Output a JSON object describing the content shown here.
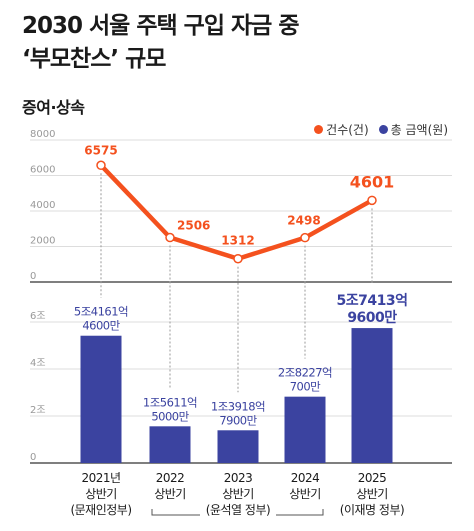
{
  "title_line1": "2030 서울 주택 구입 자금 중",
  "title_line2": "‘부모찬스’ 규모",
  "subtitle": "증여·상속",
  "legend": [
    {
      "label": "건수(건)",
      "color": "#f4511e"
    },
    {
      "label": "총 금액(원)",
      "color": "#3b43a0"
    }
  ],
  "chart_data": {
    "type": "bar",
    "categories": [
      [
        "2021년",
        "상반기",
        "(문재인정부)"
      ],
      [
        "2022",
        "상반기",
        ""
      ],
      [
        "2023",
        "상반기",
        "(윤석열 정부)"
      ],
      [
        "2024",
        "상반기",
        ""
      ],
      [
        "2025",
        "상반기",
        "(이재명 정부)"
      ]
    ],
    "series": [
      {
        "name": "건수(건)",
        "type": "line",
        "values": [
          6575,
          2506,
          1312,
          2498,
          4601
        ],
        "labels": [
          "6575",
          "2506",
          "1312",
          "2498",
          "4601"
        ]
      },
      {
        "name": "총 금액(원)",
        "type": "bar",
        "values": [
          5.4161,
          1.5611,
          1.3918,
          2.8227,
          5.7413
        ],
        "labels": [
          [
            "5조4161억",
            "4600만"
          ],
          [
            "1조5611억",
            "5000만"
          ],
          [
            "1조3918억",
            "7900만"
          ],
          [
            "2조8227억",
            "700만"
          ],
          [
            "5조7413억",
            "9600만"
          ]
        ]
      }
    ],
    "line_axis": {
      "ticks": [
        "0",
        "2000",
        "4000",
        "6000",
        "8000"
      ],
      "ylim": [
        0,
        8000
      ]
    },
    "bar_axis": {
      "ticks": [
        "0",
        "2조",
        "4조",
        "6조"
      ],
      "ylim": [
        0,
        6
      ]
    }
  }
}
